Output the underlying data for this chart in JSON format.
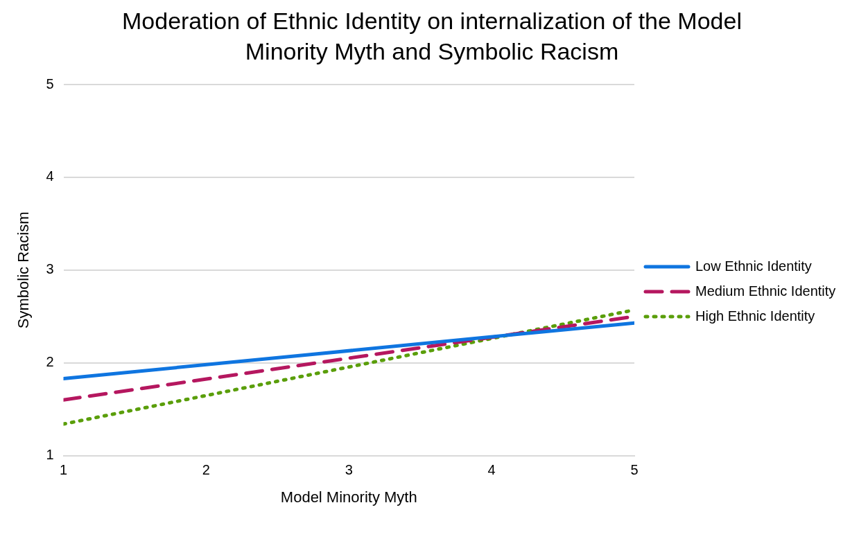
{
  "chart_data": {
    "type": "line",
    "title": "Moderation of Ethnic Identity on internalization of the Model Minority Myth and Symbolic Racism",
    "xlabel": "Model Minority Myth",
    "ylabel": "Symbolic Racism",
    "x": [
      1,
      5
    ],
    "xlim": [
      1,
      5
    ],
    "xticks": [
      1,
      2,
      3,
      4,
      5
    ],
    "ylim": [
      1,
      5
    ],
    "yticks": [
      1,
      2,
      3,
      4,
      5
    ],
    "grid": "y",
    "legend": "right",
    "marker": "none",
    "series": [
      {
        "name": "Low Ethnic Identity",
        "color": "#0f75e0",
        "values": [
          1.83,
          2.43
        ],
        "line_style": "solid"
      },
      {
        "name": "Medium Ethnic Identity",
        "color": "#b5175f",
        "values": [
          1.6,
          2.5
        ],
        "line_style": "dashed"
      },
      {
        "name": "High Ethnic Identity",
        "color": "#5a9e0a",
        "values": [
          1.34,
          2.57
        ],
        "line_style": "dotted"
      }
    ]
  }
}
